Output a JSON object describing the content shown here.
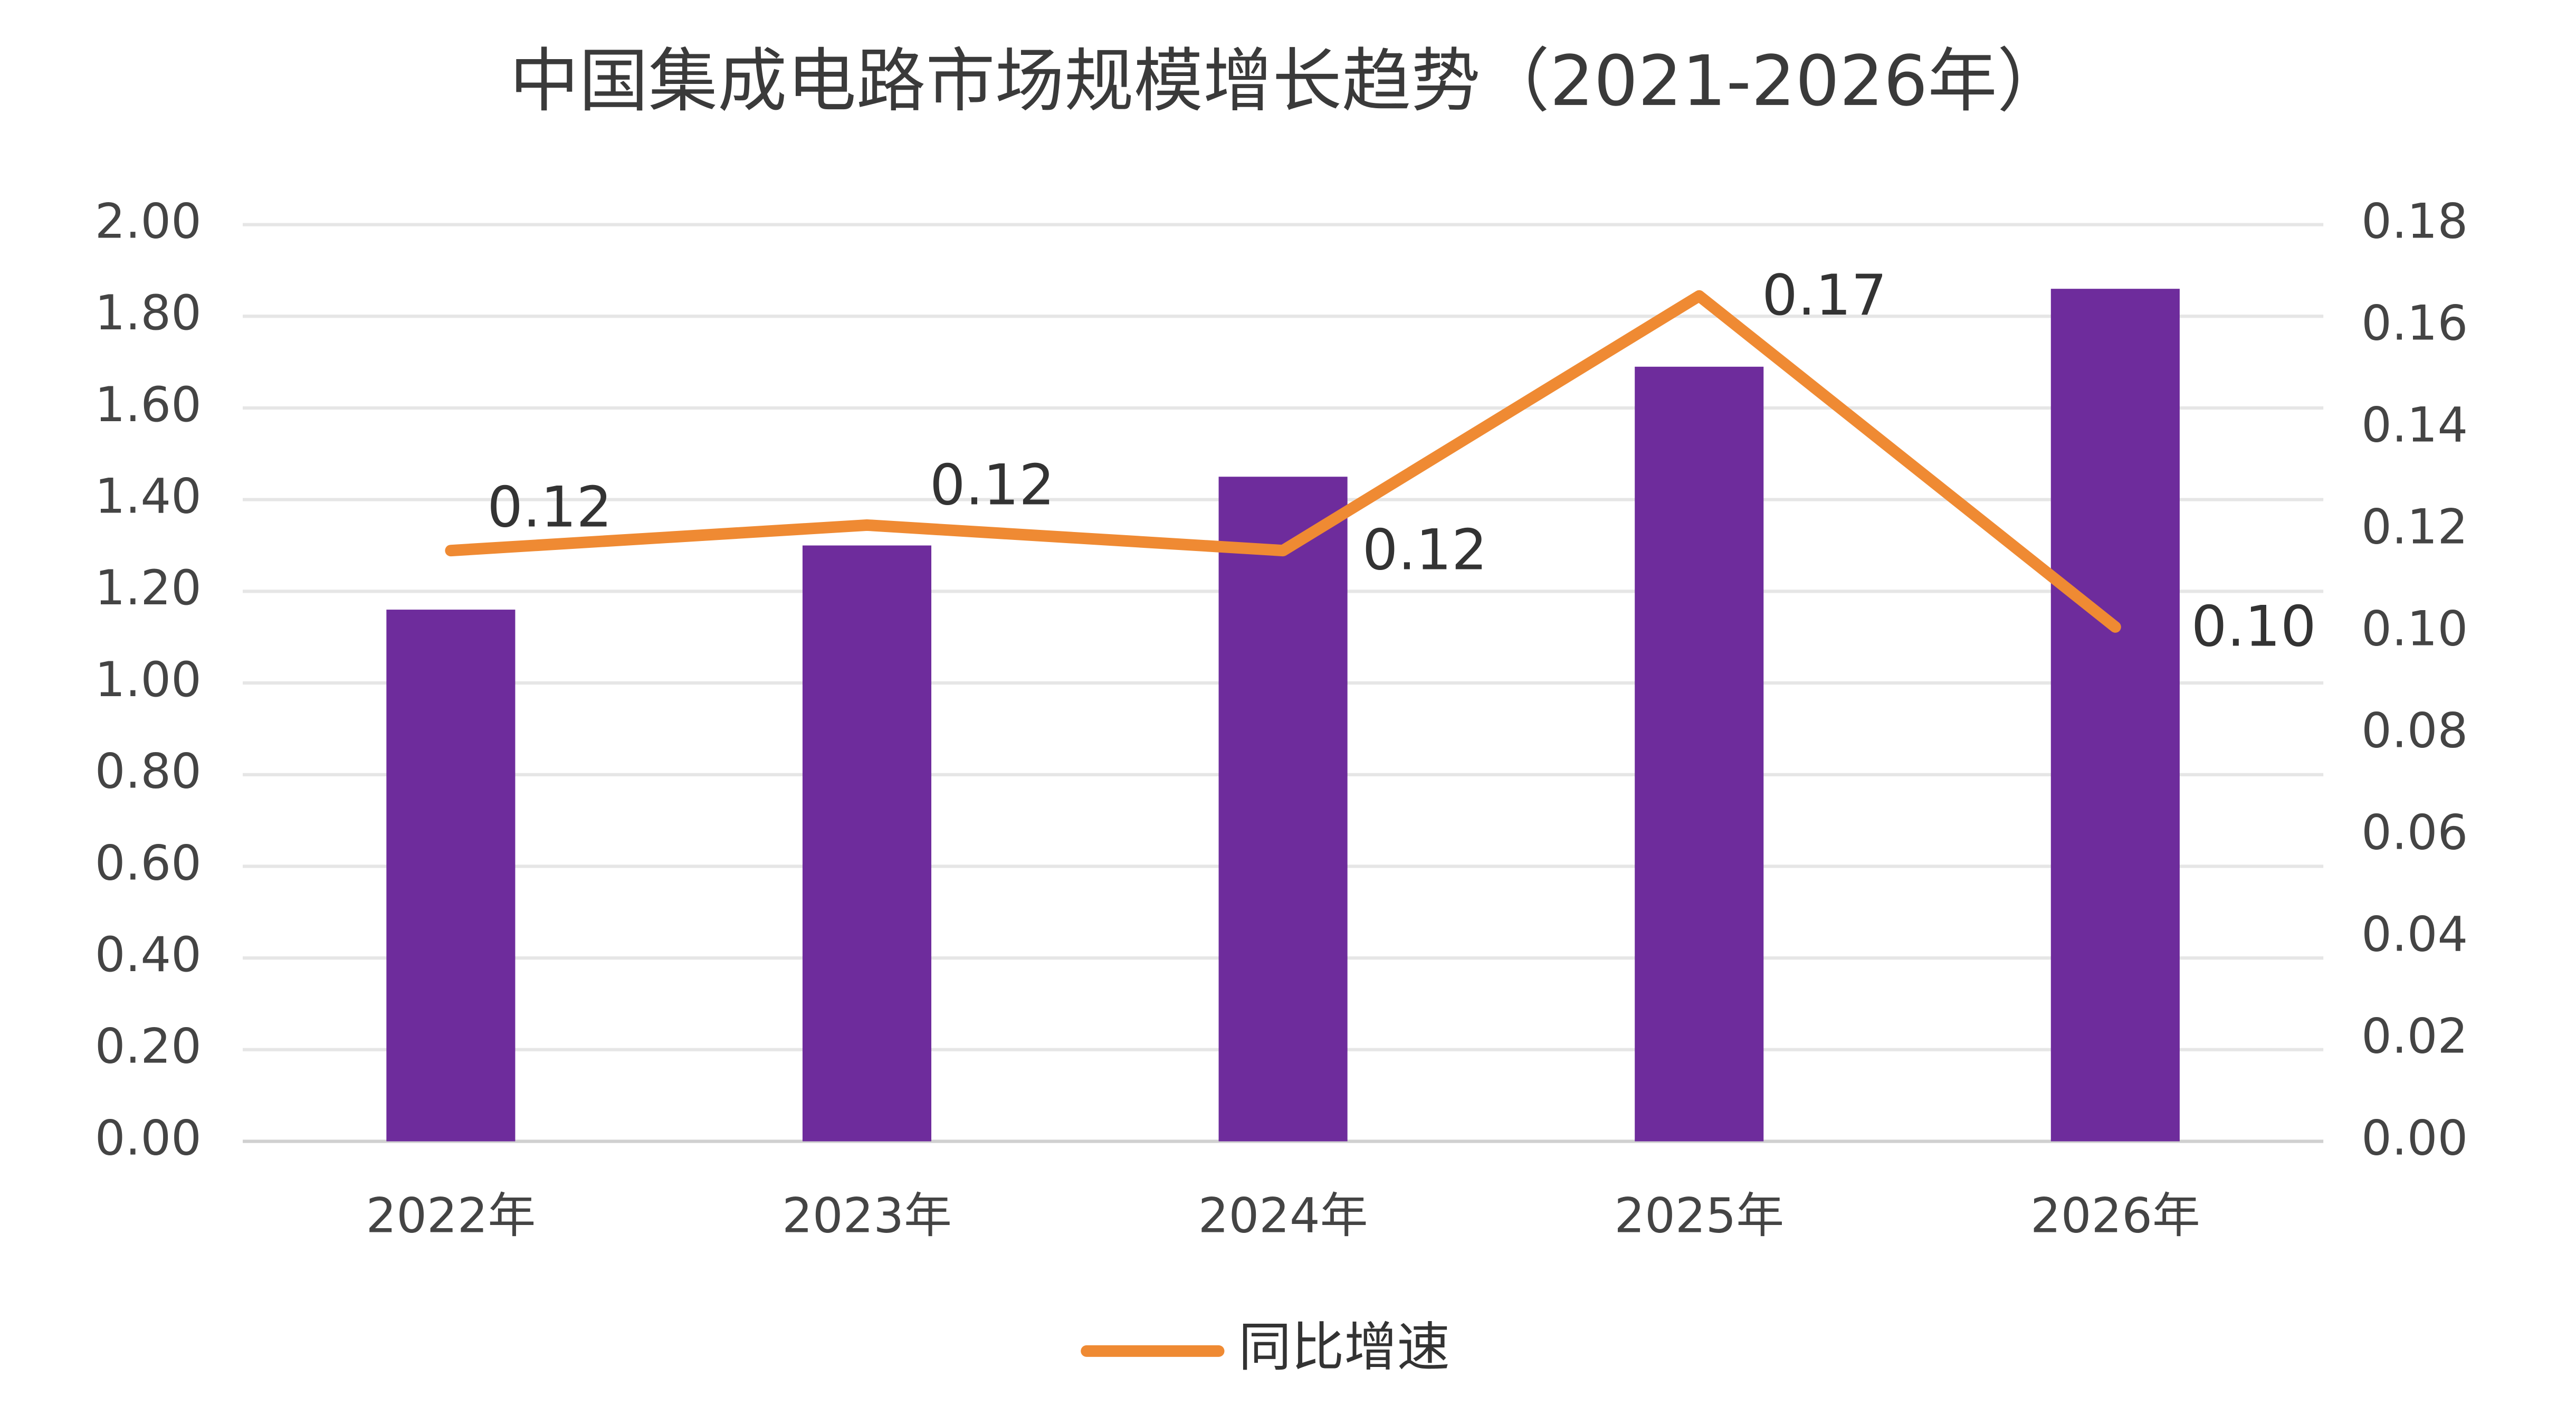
{
  "chart_data": {
    "type": "bar",
    "title": "中国集成电路市场规模增长趋势（2021-2026年）",
    "categories": [
      "2022年",
      "2023年",
      "2024年",
      "2025年",
      "2026年"
    ],
    "series": [
      {
        "type": "bar",
        "color": "#6e2c9c",
        "values": [
          1.16,
          1.3,
          1.45,
          1.69,
          1.86
        ]
      },
      {
        "type": "line",
        "name": "同比增速",
        "color": "#ef8a33",
        "axis": "y2",
        "values": [
          0.116,
          0.121,
          0.116,
          0.166,
          0.101
        ],
        "value_labels": [
          "0.12",
          "0.12",
          "0.12",
          "0.17",
          "0.10"
        ]
      }
    ],
    "ylim": [
      0,
      2
    ],
    "yticks": [
      {
        "value": 0,
        "label": "0.00"
      },
      {
        "value": 0.2,
        "label": "0.20"
      },
      {
        "value": 0.4,
        "label": "0.40"
      },
      {
        "value": 0.6,
        "label": "0.60"
      },
      {
        "value": 0.8,
        "label": "0.80"
      },
      {
        "value": 1,
        "label": "1.00"
      },
      {
        "value": 1.2,
        "label": "1.20"
      },
      {
        "value": 1.4,
        "label": "1.40"
      },
      {
        "value": 1.6,
        "label": "1.60"
      },
      {
        "value": 1.8,
        "label": "1.80"
      },
      {
        "value": 2,
        "label": "2.00"
      }
    ],
    "y2lim": [
      0,
      0.18
    ],
    "y2ticks": [
      {
        "value": 0,
        "label": "0.00"
      },
      {
        "value": 0.02,
        "label": "0.02"
      },
      {
        "value": 0.04,
        "label": "0.04"
      },
      {
        "value": 0.06,
        "label": "0.06"
      },
      {
        "value": 0.08,
        "label": "0.08"
      },
      {
        "value": 0.1,
        "label": "0.10"
      },
      {
        "value": 0.12,
        "label": "0.12"
      },
      {
        "value": 0.14,
        "label": "0.14"
      },
      {
        "value": 0.16,
        "label": "0.16"
      },
      {
        "value": 0.18,
        "label": "0.18"
      }
    ],
    "grid": true,
    "legend": "bottom"
  }
}
